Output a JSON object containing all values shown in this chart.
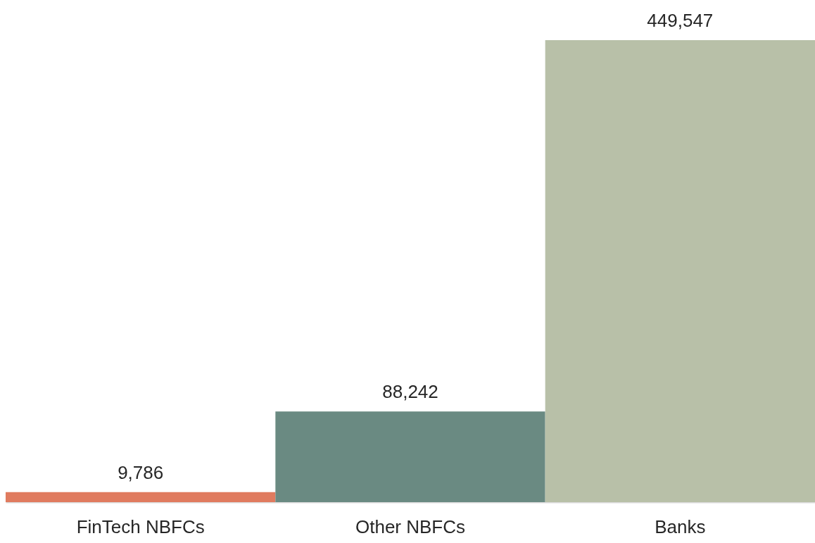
{
  "chart_data": {
    "type": "bar",
    "categories": [
      "FinTech NBFCs",
      "Other NBFCs",
      "Banks"
    ],
    "values": [
      9786,
      88242,
      449547
    ],
    "colors": [
      "#e07b5f",
      "#6a8a82",
      "#b8c0a8"
    ],
    "value_labels": [
      "9,786",
      "88,242",
      "449,547"
    ],
    "grid": false
  }
}
